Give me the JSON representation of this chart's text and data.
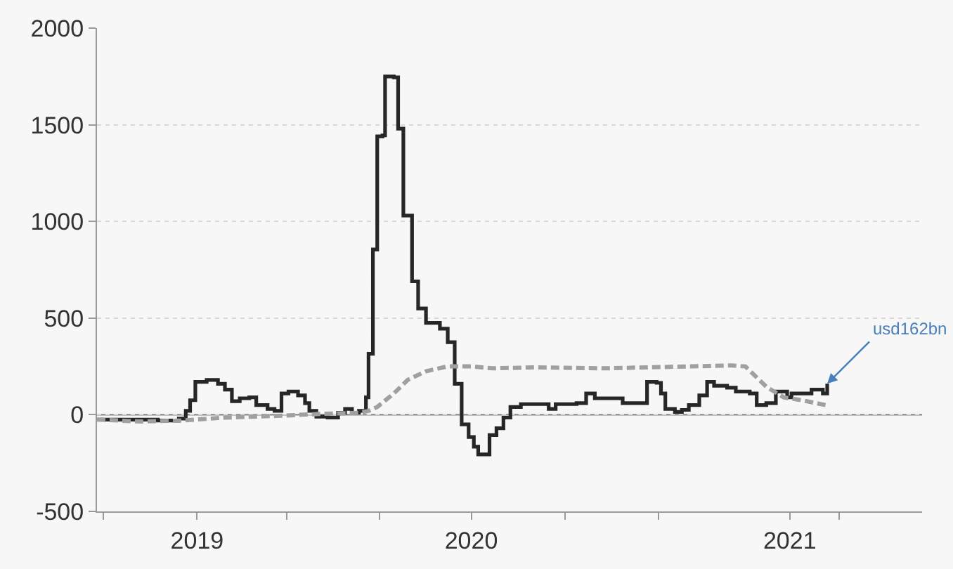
{
  "chart_data": {
    "type": "step",
    "series": [
      {
        "color": "#262626",
        "line_style": "solid",
        "x": [
          "2018-10-28",
          "2019-01-06",
          "2019-01-30",
          "2019-02-07",
          "2019-02-12",
          "2019-02-18",
          "2019-03-03",
          "2019-03-16",
          "2019-03-24",
          "2019-04-01",
          "2019-04-10",
          "2019-04-21",
          "2019-04-29",
          "2019-05-12",
          "2019-05-20",
          "2019-05-28",
          "2019-06-05",
          "2019-06-16",
          "2019-06-24",
          "2019-06-29",
          "2019-07-07",
          "2019-07-20",
          "2019-08-01",
          "2019-08-09",
          "2019-08-17",
          "2019-08-25",
          "2019-09-02",
          "2019-09-05",
          "2019-09-10",
          "2019-09-15",
          "2019-09-21",
          "2019-09-24",
          "2019-10-04",
          "2019-10-09",
          "2019-10-15",
          "2019-10-25",
          "2019-11-01",
          "2019-11-10",
          "2019-11-26",
          "2019-12-05",
          "2019-12-13",
          "2019-12-21",
          "2019-12-29",
          "2020-01-04",
          "2020-01-09",
          "2020-01-22",
          "2020-01-30",
          "2020-02-07",
          "2020-02-15",
          "2020-02-27",
          "2020-03-19",
          "2020-03-30",
          "2020-04-07",
          "2020-05-01",
          "2020-05-12",
          "2020-05-22",
          "2020-06-02",
          "2020-06-23",
          "2020-07-16",
          "2020-07-21",
          "2020-08-01",
          "2020-08-06",
          "2020-08-11",
          "2020-08-22",
          "2020-08-30",
          "2020-09-07",
          "2020-09-19",
          "2020-09-28",
          "2020-10-06",
          "2020-10-21",
          "2020-10-31",
          "2020-11-16",
          "2020-11-24",
          "2020-12-05",
          "2020-12-16",
          "2020-12-29",
          "2021-01-03",
          "2021-01-26",
          "2021-02-08",
          "2021-02-13"
        ],
        "values": [
          -25,
          -30,
          -20,
          20,
          75,
          170,
          180,
          160,
          130,
          70,
          85,
          90,
          50,
          30,
          20,
          110,
          120,
          100,
          60,
          20,
          -10,
          -15,
          10,
          30,
          10,
          20,
          90,
          315,
          855,
          1440,
          1445,
          1750,
          1745,
          1480,
          1030,
          690,
          550,
          475,
          445,
          375,
          160,
          -50,
          -115,
          -165,
          -205,
          -105,
          -70,
          -15,
          40,
          55,
          55,
          30,
          55,
          60,
          110,
          85,
          85,
          60,
          60,
          170,
          165,
          110,
          30,
          15,
          25,
          50,
          100,
          170,
          150,
          140,
          120,
          110,
          50,
          60,
          120,
          90,
          110,
          130,
          110,
          160
        ]
      },
      {
        "type": "line",
        "color": "#a0a0a0",
        "line_style": "dashed",
        "x": [
          "2018-10-28",
          "2018-12-17",
          "2019-02-02",
          "2019-03-24",
          "2019-05-28",
          "2019-07-15",
          "2019-08-25",
          "2019-09-05",
          "2019-09-15",
          "2019-10-04",
          "2019-10-20",
          "2019-11-10",
          "2019-12-05",
          "2020-01-01",
          "2020-01-25",
          "2020-03-14",
          "2020-06-02",
          "2020-07-21",
          "2020-09-07",
          "2020-10-26",
          "2020-11-11",
          "2020-12-05",
          "2020-12-25",
          "2021-01-15",
          "2021-02-11"
        ],
        "values": [
          -25,
          -35,
          -30,
          -15,
          -5,
          5,
          10,
          20,
          40,
          110,
          180,
          225,
          250,
          250,
          240,
          245,
          240,
          245,
          250,
          255,
          250,
          145,
          90,
          75,
          50
        ]
      }
    ],
    "xlim": [
      "2018-10-28",
      "2021-06-02"
    ],
    "xticks": [
      {
        "value": "2018-11-04",
        "label": null
      },
      {
        "value": "2019-02-20",
        "label": "2019"
      },
      {
        "value": "2019-06-03",
        "label": null
      },
      {
        "value": "2019-09-18",
        "label": null
      },
      {
        "value": "2020-01-01",
        "label": "2020"
      },
      {
        "value": "2020-04-18",
        "label": null
      },
      {
        "value": "2020-08-03",
        "label": null
      },
      {
        "value": "2021-01-01",
        "label": "2021"
      },
      {
        "value": "2021-02-27",
        "label": null
      }
    ],
    "ylim": [
      -500,
      2000
    ],
    "yticks": [
      -500,
      0,
      500,
      1000,
      1500,
      2000
    ],
    "grid": "y",
    "ref_lines": [
      {
        "axis": "y",
        "value": 0,
        "color": "#8c8c8c"
      }
    ],
    "annotations": [
      {
        "text": "usd162bn",
        "x": "2021-02-13",
        "y": 160
      }
    ]
  }
}
